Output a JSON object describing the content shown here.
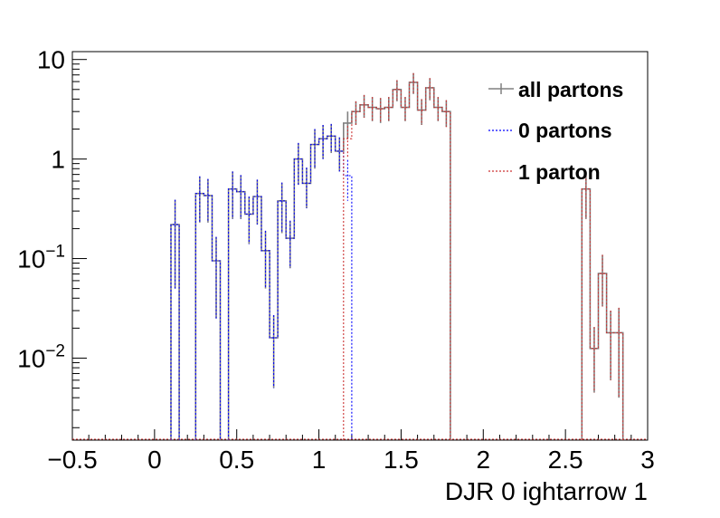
{
  "chart_data": {
    "type": "histogram",
    "xlabel": "DJR 0 ightarrow 1",
    "ylabel": "",
    "xlim": [
      -0.5,
      3.0
    ],
    "ylim": [
      0.0015,
      12
    ],
    "log_y": true,
    "grid": false,
    "legend_position": "top-right",
    "x_ticks": [
      {
        "value": -0.5,
        "label": "−0.5"
      },
      {
        "value": 0,
        "label": "0"
      },
      {
        "value": 0.5,
        "label": "0.5"
      },
      {
        "value": 1,
        "label": "1"
      },
      {
        "value": 1.5,
        "label": "1.5"
      },
      {
        "value": 2,
        "label": "2"
      },
      {
        "value": 2.5,
        "label": "2.5"
      },
      {
        "value": 3,
        "label": "3"
      }
    ],
    "y_ticks": [
      {
        "value": 0.01,
        "base": "10",
        "exp": "−2"
      },
      {
        "value": 0.1,
        "base": "10",
        "exp": "−1"
      },
      {
        "value": 1,
        "base": "1",
        "exp": ""
      },
      {
        "value": 10,
        "base": "10",
        "exp": ""
      }
    ],
    "bin_width": 0.05,
    "series": [
      {
        "name": "all partons",
        "color": "#808080",
        "style": "solid",
        "bins": [
          [
            0.1,
            0.15,
            0.22,
            0.17
          ],
          [
            0.25,
            0.3,
            0.45,
            0.22
          ],
          [
            0.3,
            0.35,
            0.43,
            0.2
          ],
          [
            0.35,
            0.4,
            0.095,
            0.07
          ],
          [
            0.45,
            0.5,
            0.5,
            0.25
          ],
          [
            0.5,
            0.55,
            0.47,
            0.22
          ],
          [
            0.55,
            0.6,
            0.28,
            0.14
          ],
          [
            0.6,
            0.65,
            0.42,
            0.2
          ],
          [
            0.65,
            0.7,
            0.12,
            0.07
          ],
          [
            0.7,
            0.75,
            0.016,
            0.011
          ],
          [
            0.75,
            0.8,
            0.38,
            0.2
          ],
          [
            0.8,
            0.85,
            0.16,
            0.08
          ],
          [
            0.85,
            0.9,
            1.0,
            0.45
          ],
          [
            0.9,
            0.95,
            0.57,
            0.25
          ],
          [
            0.95,
            1.0,
            1.4,
            0.6
          ],
          [
            1.0,
            1.05,
            1.6,
            0.6
          ],
          [
            1.05,
            1.1,
            1.7,
            0.55
          ],
          [
            1.1,
            1.15,
            1.2,
            0.45
          ],
          [
            1.15,
            1.2,
            2.3,
            0.7
          ],
          [
            1.2,
            1.25,
            3.0,
            0.8
          ],
          [
            1.25,
            1.3,
            3.5,
            0.9
          ],
          [
            1.3,
            1.35,
            3.3,
            0.9
          ],
          [
            1.35,
            1.4,
            3.2,
            0.9
          ],
          [
            1.4,
            1.45,
            3.3,
            0.9
          ],
          [
            1.45,
            1.5,
            5.0,
            1.2
          ],
          [
            1.5,
            1.55,
            3.3,
            0.9
          ],
          [
            1.55,
            1.6,
            5.9,
            1.4
          ],
          [
            1.6,
            1.65,
            3.1,
            0.9
          ],
          [
            1.65,
            1.7,
            5.2,
            1.3
          ],
          [
            1.7,
            1.75,
            3.3,
            0.9
          ],
          [
            1.75,
            1.8,
            3.0,
            0.9
          ],
          [
            2.6,
            2.65,
            0.5,
            0.25
          ],
          [
            2.65,
            2.7,
            0.0125,
            0.008
          ],
          [
            2.7,
            2.75,
            0.071,
            0.038
          ],
          [
            2.75,
            2.8,
            0.018,
            0.012
          ],
          [
            2.8,
            2.85,
            0.018,
            0.014
          ]
        ]
      },
      {
        "name": "0 partons",
        "color": "#0000ff",
        "style": "dotted",
        "bins": [
          [
            0.1,
            0.15,
            0.22,
            0.17
          ],
          [
            0.25,
            0.3,
            0.45,
            0.22
          ],
          [
            0.3,
            0.35,
            0.43,
            0.2
          ],
          [
            0.35,
            0.4,
            0.095,
            0.07
          ],
          [
            0.45,
            0.5,
            0.5,
            0.25
          ],
          [
            0.5,
            0.55,
            0.47,
            0.22
          ],
          [
            0.55,
            0.6,
            0.28,
            0.14
          ],
          [
            0.6,
            0.65,
            0.42,
            0.2
          ],
          [
            0.65,
            0.7,
            0.12,
            0.07
          ],
          [
            0.7,
            0.75,
            0.016,
            0.011
          ],
          [
            0.75,
            0.8,
            0.38,
            0.2
          ],
          [
            0.8,
            0.85,
            0.16,
            0.08
          ],
          [
            0.85,
            0.9,
            1.0,
            0.45
          ],
          [
            0.9,
            0.95,
            0.57,
            0.25
          ],
          [
            0.95,
            1.0,
            1.4,
            0.6
          ],
          [
            1.0,
            1.05,
            1.6,
            0.6
          ],
          [
            1.05,
            1.1,
            1.7,
            0.55
          ],
          [
            1.1,
            1.15,
            1.2,
            0.45
          ],
          [
            1.15,
            1.2,
            0.68,
            0.3
          ]
        ]
      },
      {
        "name": "1 parton",
        "color": "#cc3333",
        "style": "dotted",
        "bins": [
          [
            1.15,
            1.2,
            1.6,
            0.55
          ],
          [
            1.2,
            1.25,
            3.0,
            0.8
          ],
          [
            1.25,
            1.3,
            3.5,
            0.9
          ],
          [
            1.3,
            1.35,
            3.3,
            0.9
          ],
          [
            1.35,
            1.4,
            3.2,
            0.9
          ],
          [
            1.4,
            1.45,
            3.3,
            0.9
          ],
          [
            1.45,
            1.5,
            5.0,
            1.2
          ],
          [
            1.5,
            1.55,
            3.3,
            0.9
          ],
          [
            1.55,
            1.6,
            5.9,
            1.4
          ],
          [
            1.6,
            1.65,
            3.1,
            0.9
          ],
          [
            1.65,
            1.7,
            5.2,
            1.3
          ],
          [
            1.7,
            1.75,
            3.3,
            0.9
          ],
          [
            1.75,
            1.8,
            3.0,
            0.9
          ],
          [
            2.6,
            2.65,
            0.5,
            0.25
          ],
          [
            2.65,
            2.7,
            0.0125,
            0.008
          ],
          [
            2.7,
            2.75,
            0.071,
            0.038
          ],
          [
            2.75,
            2.8,
            0.018,
            0.012
          ],
          [
            2.8,
            2.85,
            0.018,
            0.014
          ]
        ]
      }
    ]
  }
}
